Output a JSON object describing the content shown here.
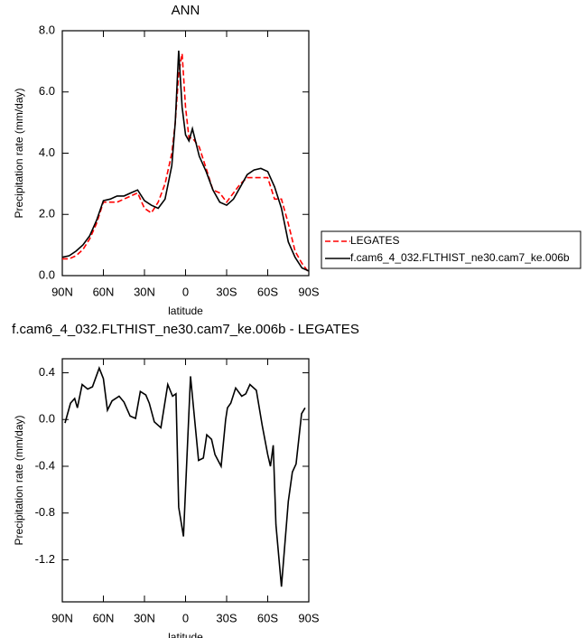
{
  "chart_data": [
    {
      "type": "line",
      "title": "ANN",
      "y_label": "Precipitation rate (mm/day)",
      "x_label": "latitude",
      "x": [
        90,
        85,
        80,
        75,
        70,
        65,
        60,
        55,
        50,
        45,
        40,
        35,
        30,
        25,
        20,
        15,
        10,
        7.5,
        5,
        2.5,
        0,
        -2.5,
        -5,
        -10,
        -15,
        -20,
        -25,
        -30,
        -35,
        -40,
        -45,
        -50,
        -55,
        -60,
        -65,
        -70,
        -75,
        -80,
        -85,
        -90
      ],
      "xlim": [
        90,
        -90
      ],
      "xticks": [
        {
          "value": 90,
          "label": "90N"
        },
        {
          "value": 60,
          "label": "60N"
        },
        {
          "value": 30,
          "label": "30N"
        },
        0,
        {
          "value": -30,
          "label": "30S"
        },
        {
          "value": -60,
          "label": "60S"
        },
        {
          "value": -90,
          "label": "90S"
        }
      ],
      "ylim": [
        0,
        8
      ],
      "yticks": [
        {
          "value": 0,
          "label": "0.0"
        },
        {
          "value": 2,
          "label": "2.0"
        },
        {
          "value": 4,
          "label": "4.0"
        },
        {
          "value": 6,
          "label": "6.0"
        },
        {
          "value": 8,
          "label": "8.0"
        }
      ],
      "legend": "outside-right",
      "series": [
        {
          "name": "LEGATES",
          "color": "#ff0000",
          "line_style": "dashed",
          "values": [
            0.55,
            0.55,
            0.65,
            0.85,
            1.2,
            1.7,
            2.4,
            2.4,
            2.4,
            2.5,
            2.6,
            2.7,
            2.2,
            2.05,
            2.4,
            3.0,
            4.0,
            5.0,
            6.6,
            7.25,
            5.5,
            4.5,
            4.5,
            4.2,
            3.5,
            2.8,
            2.7,
            2.4,
            2.7,
            3.0,
            3.2,
            3.2,
            3.2,
            3.2,
            2.5,
            2.5,
            1.7,
            0.8,
            0.4,
            0.1
          ]
        },
        {
          "name": "f.cam6_4_032.FLTHIST_ne30.cam7_ke.006b",
          "color": "#000000",
          "line_style": "solid",
          "values": [
            0.6,
            0.65,
            0.8,
            1.0,
            1.3,
            1.8,
            2.45,
            2.5,
            2.6,
            2.6,
            2.7,
            2.8,
            2.45,
            2.3,
            2.2,
            2.5,
            3.6,
            5.0,
            7.35,
            5.5,
            4.6,
            4.4,
            4.8,
            3.9,
            3.4,
            2.8,
            2.4,
            2.3,
            2.5,
            2.9,
            3.3,
            3.45,
            3.5,
            3.4,
            2.9,
            2.2,
            1.1,
            0.6,
            0.25,
            0.15
          ]
        }
      ]
    },
    {
      "type": "line",
      "title": "f.cam6_4_032.FLTHIST_ne30.cam7_ke.006b - LEGATES",
      "y_label": "Precipitation rate (mm/day)",
      "x_label": "latitude",
      "x": [
        88,
        84,
        81,
        79,
        75.5,
        71.5,
        68,
        63,
        60,
        57,
        53.7,
        48.5,
        45,
        40.5,
        36.5,
        33,
        29,
        26.5,
        22.8,
        18,
        13,
        9.5,
        7,
        5,
        1.5,
        -3.6,
        -9.5,
        -13,
        -15.5,
        -19,
        -21.5,
        -26,
        -29.3,
        -30.6,
        -33,
        -36.6,
        -41,
        -44,
        -47,
        -51.7,
        -56,
        -60,
        -62,
        -64,
        -66,
        -70,
        -75,
        -78,
        -80.7,
        -84.7,
        -87.3
      ],
      "xlim": [
        90,
        -90
      ],
      "xticks": [
        {
          "value": 90,
          "label": "90N"
        },
        {
          "value": 60,
          "label": "60N"
        },
        {
          "value": 30,
          "label": "30N"
        },
        0,
        {
          "value": -30,
          "label": "30S"
        },
        {
          "value": -60,
          "label": "60S"
        },
        {
          "value": -90,
          "label": "90S"
        }
      ],
      "ylim": [
        -1.56,
        0.52
      ],
      "yticks": [
        0.4,
        {
          "value": 0,
          "label": "0.0"
        },
        -0.4,
        -0.8,
        -1.2
      ],
      "series": [
        {
          "color": "#000000",
          "line_style": "solid",
          "values": [
            -0.03,
            0.14,
            0.18,
            0.1,
            0.3,
            0.26,
            0.28,
            0.44,
            0.35,
            0.08,
            0.16,
            0.2,
            0.15,
            0.03,
            0.01,
            0.24,
            0.21,
            0.14,
            -0.02,
            -0.07,
            0.3,
            0.2,
            0.22,
            -0.75,
            -1.0,
            0.37,
            -0.35,
            -0.33,
            -0.13,
            -0.17,
            -0.3,
            -0.4,
            0.0,
            0.1,
            0.14,
            0.27,
            0.2,
            0.22,
            0.3,
            0.25,
            -0.05,
            -0.3,
            -0.4,
            -0.22,
            -0.9,
            -1.43,
            -0.7,
            -0.45,
            -0.38,
            0.05,
            0.1
          ]
        }
      ]
    }
  ]
}
